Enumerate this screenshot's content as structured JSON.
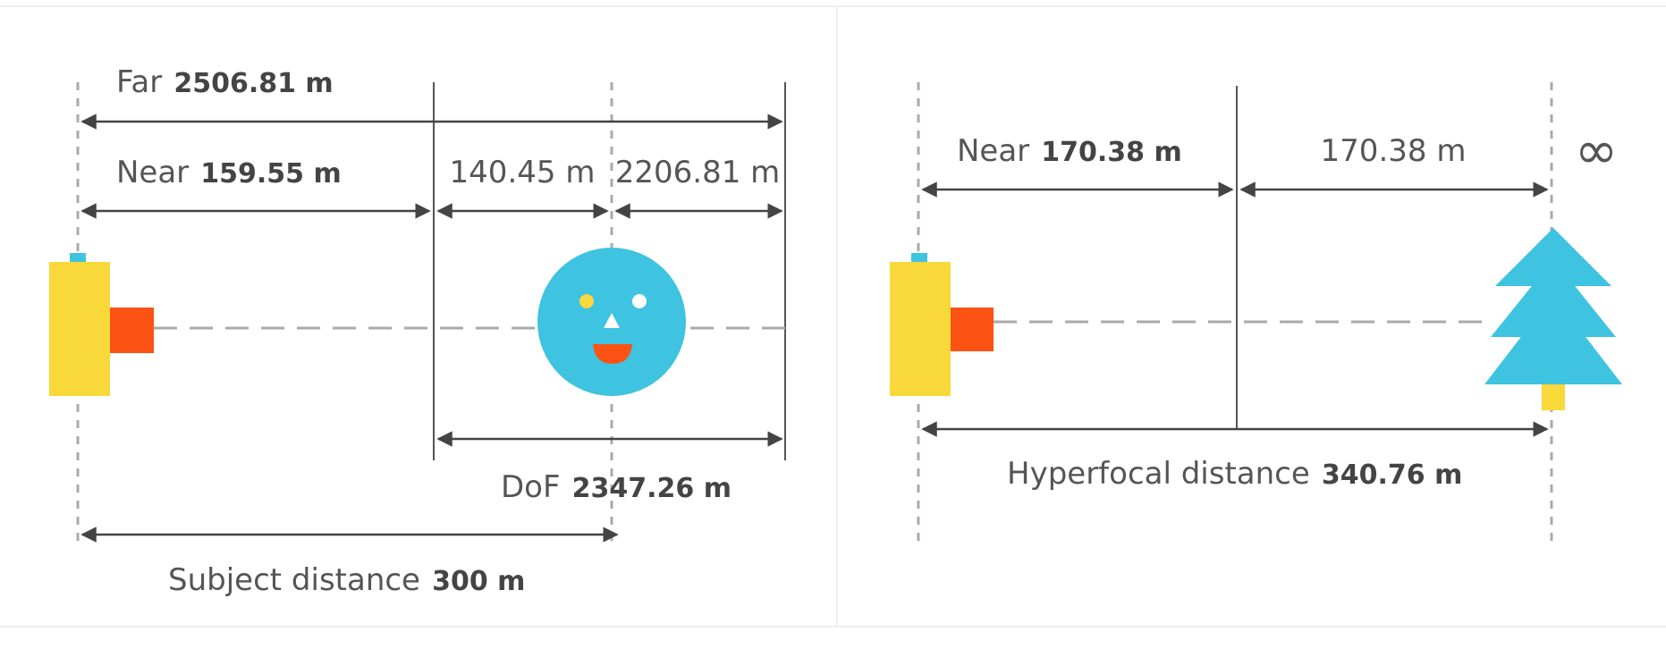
{
  "dof_panel": {
    "far_label": "Far",
    "far_value": "2506.81 m",
    "near_label": "Near",
    "near_value": "159.55 m",
    "near_to_subject": "140.45 m",
    "subject_to_far": "2206.81 m",
    "dof_label": "DoF",
    "dof_value": "2347.26 m",
    "subject_label": "Subject distance",
    "subject_value": "300 m"
  },
  "hyperfocal_panel": {
    "near_label": "Near",
    "near_value": "170.38 m",
    "near_to_hyperfocal": "170.38 m",
    "infinity_symbol": "∞",
    "hyperfocal_label": "Hyperfocal distance",
    "hyperfocal_value": "340.76 m"
  },
  "colors": {
    "camera_body": "#f9d83a",
    "camera_lens": "#fc5214",
    "camera_button": "#3ec3e0",
    "face": "#3ec3e0",
    "face_eye_left": "#f9d83a",
    "face_eye_right": "#ffffff",
    "face_mouth": "#fc5214",
    "tree": "#3ec3e0",
    "tree_trunk": "#f9d83a",
    "line": "#444444",
    "dashed": "#aaaaaa"
  }
}
